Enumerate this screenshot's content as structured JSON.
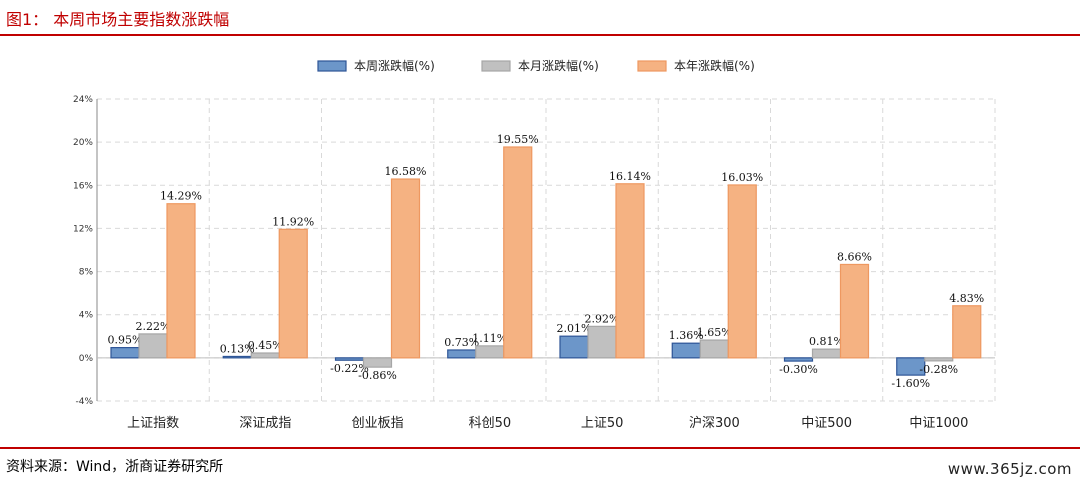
{
  "header": {
    "title": "图1：  本周市场主要指数涨跌幅"
  },
  "footer": {
    "source": "资料来源：Wind，浙商证券研究所",
    "watermark": "www.365jz.com"
  },
  "colors": {
    "accent": "#c00000",
    "series": [
      "#6c96c9",
      "#c0c0c0",
      "#f5b282"
    ],
    "series_stroke": [
      "#2e5597",
      "#a6a6a6",
      "#ee9860"
    ]
  },
  "chart_data": {
    "type": "bar",
    "categories": [
      "上证指数",
      "深证成指",
      "创业板指",
      "科创50",
      "上证50",
      "沪深300",
      "中证500",
      "中证1000"
    ],
    "series": [
      {
        "name": "本周涨跌幅(%)",
        "values": [
          0.95,
          0.13,
          -0.22,
          0.73,
          2.01,
          1.36,
          -0.3,
          -1.6
        ],
        "labels": [
          "0.95%",
          "0.13%",
          "-0.22%",
          "0.73%",
          "2.01%",
          "1.36%",
          "-0.30%",
          "-1.60%"
        ]
      },
      {
        "name": "本月涨跌幅(%)",
        "values": [
          2.22,
          0.45,
          -0.86,
          1.11,
          2.92,
          1.65,
          0.81,
          -0.28
        ],
        "labels": [
          "2.22%",
          "0.45%",
          "-0.86%",
          "1.11%",
          "2.92%",
          "1.65%",
          "0.81%",
          "-0.28%"
        ]
      },
      {
        "name": "本年涨跌幅(%)",
        "values": [
          14.29,
          11.92,
          16.58,
          19.55,
          16.14,
          16.03,
          8.66,
          4.83
        ],
        "labels": [
          "14.29%",
          "11.92%",
          "16.58%",
          "19.55%",
          "16.14%",
          "16.03%",
          "8.66%",
          "4.83%"
        ]
      }
    ],
    "yticks": [
      "24%",
      "20%",
      "16%",
      "12%",
      "8%",
      "4%",
      "0%",
      "-4%"
    ],
    "ytick_values": [
      24,
      20,
      16,
      12,
      8,
      4,
      0,
      -4
    ],
    "ylim": [
      -4,
      24
    ],
    "grid": true,
    "legend_position": "top"
  }
}
